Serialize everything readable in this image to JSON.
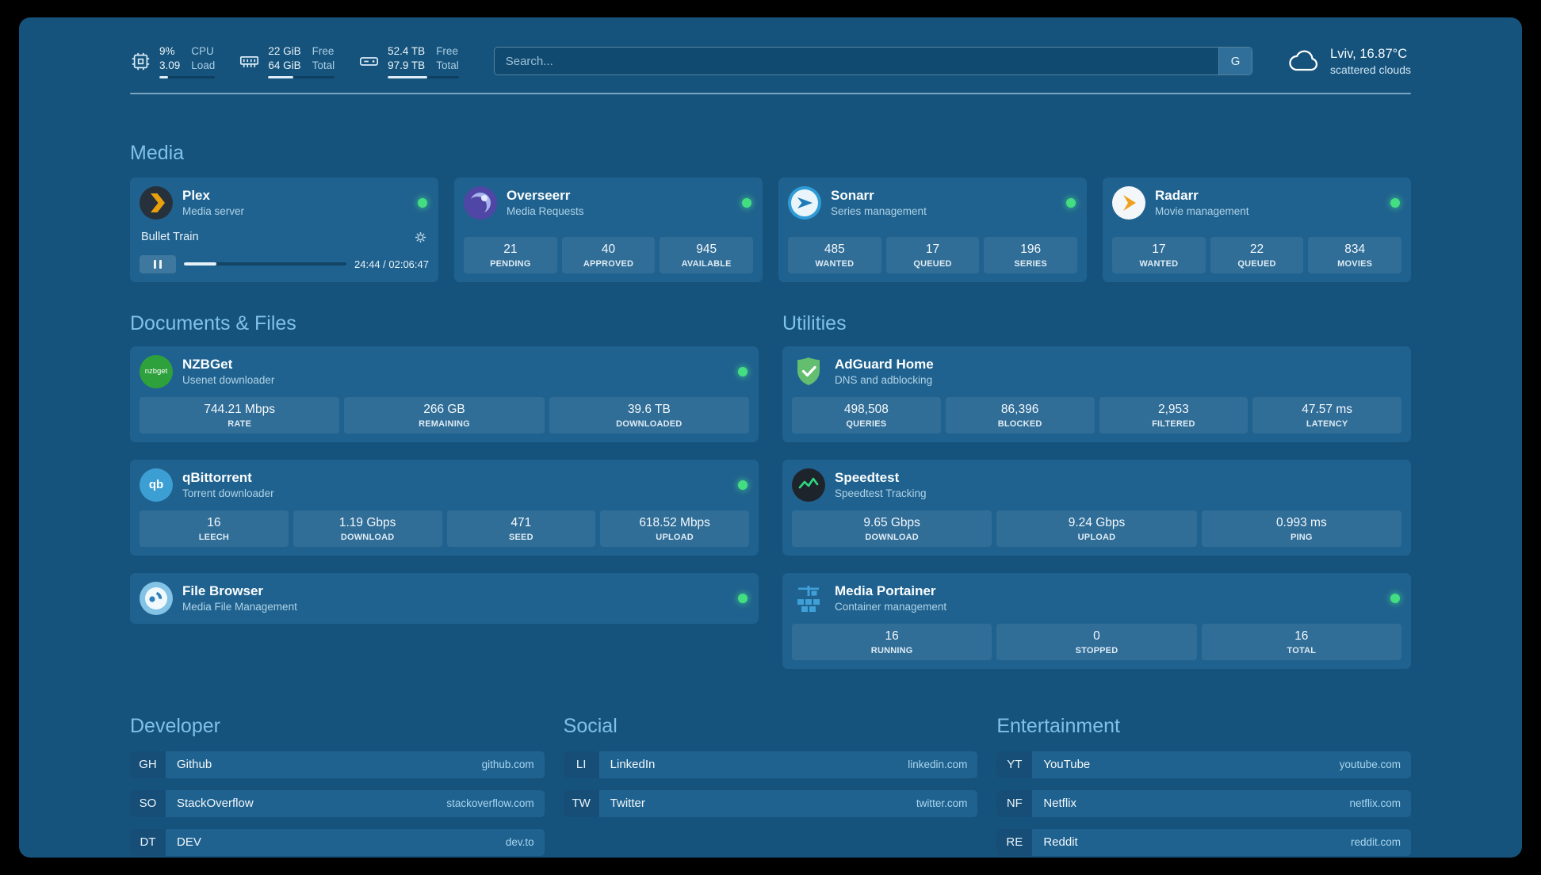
{
  "colors": {
    "page_bg": "#15537C",
    "card_bg": "#20628F",
    "accent_heading": "#7FC2E9",
    "status_ok": "#44DE82"
  },
  "header": {
    "resources": [
      {
        "icon": "cpu-icon",
        "values": [
          "9%",
          "3.09"
        ],
        "labels": [
          "CPU",
          "Load"
        ],
        "progress": 15
      },
      {
        "icon": "memory-icon",
        "values": [
          "22 GiB",
          "64 GiB"
        ],
        "labels": [
          "Free",
          "Total"
        ],
        "progress": 38
      },
      {
        "icon": "disk-icon",
        "values": [
          "52.4 TB",
          "97.9 TB"
        ],
        "labels": [
          "Free",
          "Total"
        ],
        "progress": 56
      }
    ],
    "search": {
      "placeholder": "Search...",
      "provider_button": "G"
    },
    "weather": {
      "icon": "cloud-icon",
      "location": "Lviv, 16.87°C",
      "condition": "scattered clouds"
    }
  },
  "media": {
    "heading": "Media",
    "plex": {
      "icon": "plex-icon",
      "name": "Plex",
      "subtitle": "Media server",
      "status": "online",
      "now_playing": "Bullet Train",
      "time": "24:44 / 02:06:47",
      "progress": 20
    },
    "overseerr": {
      "icon": "overseerr-icon",
      "name": "Overseerr",
      "subtitle": "Media Requests",
      "status": "online",
      "stats": [
        {
          "value": "21",
          "label": "PENDING"
        },
        {
          "value": "40",
          "label": "APPROVED"
        },
        {
          "value": "945",
          "label": "AVAILABLE"
        }
      ]
    },
    "sonarr": {
      "icon": "sonarr-icon",
      "name": "Sonarr",
      "subtitle": "Series management",
      "status": "online",
      "stats": [
        {
          "value": "485",
          "label": "WANTED"
        },
        {
          "value": "17",
          "label": "QUEUED"
        },
        {
          "value": "196",
          "label": "SERIES"
        }
      ]
    },
    "radarr": {
      "icon": "radarr-icon",
      "name": "Radarr",
      "subtitle": "Movie management",
      "status": "online",
      "stats": [
        {
          "value": "17",
          "label": "WANTED"
        },
        {
          "value": "22",
          "label": "QUEUED"
        },
        {
          "value": "834",
          "label": "MOVIES"
        }
      ]
    }
  },
  "documents": {
    "heading": "Documents & Files",
    "nzbget": {
      "icon": "nzbget-icon",
      "icon_text": "nzbget",
      "name": "NZBGet",
      "subtitle": "Usenet downloader",
      "status": "online",
      "stats": [
        {
          "value": "744.21 Mbps",
          "label": "RATE"
        },
        {
          "value": "266 GB",
          "label": "REMAINING"
        },
        {
          "value": "39.6 TB",
          "label": "DOWNLOADED"
        }
      ]
    },
    "qbittorrent": {
      "icon": "qbittorrent-icon",
      "icon_text": "qb",
      "name": "qBittorrent",
      "subtitle": "Torrent downloader",
      "status": "online",
      "stats": [
        {
          "value": "16",
          "label": "LEECH"
        },
        {
          "value": "1.19 Gbps",
          "label": "DOWNLOAD"
        },
        {
          "value": "471",
          "label": "SEED"
        },
        {
          "value": "618.52 Mbps",
          "label": "UPLOAD"
        }
      ]
    },
    "filebrowser": {
      "icon": "filebrowser-icon",
      "name": "File Browser",
      "subtitle": "Media File Management",
      "status": "online"
    }
  },
  "utilities": {
    "heading": "Utilities",
    "adguard": {
      "icon": "adguard-icon",
      "name": "AdGuard Home",
      "subtitle": "DNS and adblocking",
      "stats": [
        {
          "value": "498,508",
          "label": "QUERIES"
        },
        {
          "value": "86,396",
          "label": "BLOCKED"
        },
        {
          "value": "2,953",
          "label": "FILTERED"
        },
        {
          "value": "47.57 ms",
          "label": "LATENCY"
        }
      ]
    },
    "speedtest": {
      "icon": "speedtest-icon",
      "name": "Speedtest",
      "subtitle": "Speedtest Tracking",
      "stats": [
        {
          "value": "9.65 Gbps",
          "label": "DOWNLOAD"
        },
        {
          "value": "9.24 Gbps",
          "label": "UPLOAD"
        },
        {
          "value": "0.993 ms",
          "label": "PING"
        }
      ]
    },
    "portainer": {
      "icon": "portainer-icon",
      "name": "Media Portainer",
      "subtitle": "Container management",
      "status": "online",
      "stats": [
        {
          "value": "16",
          "label": "RUNNING"
        },
        {
          "value": "0",
          "label": "STOPPED"
        },
        {
          "value": "16",
          "label": "TOTAL"
        }
      ]
    }
  },
  "bookmarks": {
    "developer": {
      "heading": "Developer",
      "items": [
        {
          "abbr": "GH",
          "name": "Github",
          "url": "github.com"
        },
        {
          "abbr": "SO",
          "name": "StackOverflow",
          "url": "stackoverflow.com"
        },
        {
          "abbr": "DT",
          "name": "DEV",
          "url": "dev.to"
        }
      ]
    },
    "social": {
      "heading": "Social",
      "items": [
        {
          "abbr": "LI",
          "name": "LinkedIn",
          "url": "linkedin.com"
        },
        {
          "abbr": "TW",
          "name": "Twitter",
          "url": "twitter.com"
        }
      ]
    },
    "entertainment": {
      "heading": "Entertainment",
      "items": [
        {
          "abbr": "YT",
          "name": "YouTube",
          "url": "youtube.com"
        },
        {
          "abbr": "NF",
          "name": "Netflix",
          "url": "netflix.com"
        },
        {
          "abbr": "RE",
          "name": "Reddit",
          "url": "reddit.com"
        }
      ]
    }
  }
}
